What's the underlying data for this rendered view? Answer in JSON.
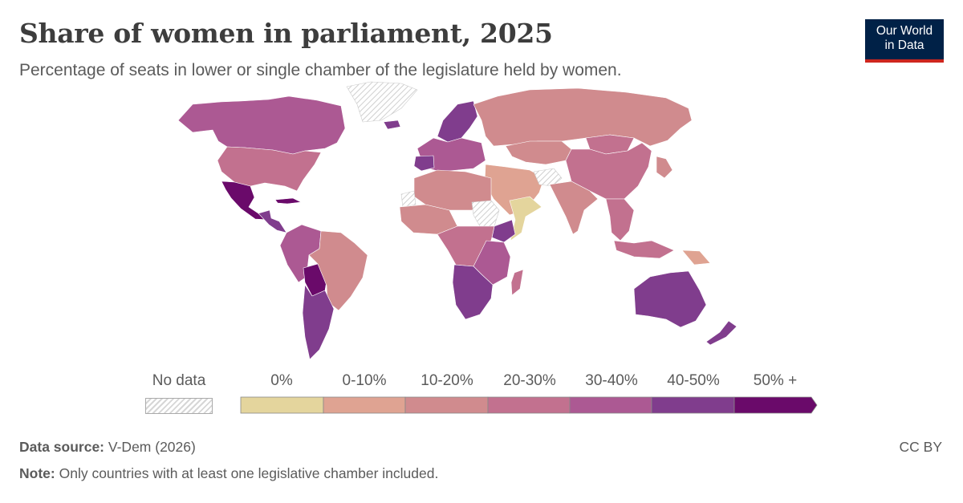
{
  "header": {
    "title": "Share of women in parliament, 2025",
    "subtitle": "Percentage of seats in lower or single chamber of the legislature held by women."
  },
  "logo": {
    "line1": "Our World",
    "line2": "in Data",
    "bg_color": "#002147",
    "accent_color": "#ce261e"
  },
  "legend": {
    "no_data_label": "No data",
    "bins": [
      {
        "label": "0%",
        "color": "#e4d59d"
      },
      {
        "label": "0-10%",
        "color": "#dfa392"
      },
      {
        "label": "10-20%",
        "color": "#d08b8e"
      },
      {
        "label": "20-30%",
        "color": "#c2718f"
      },
      {
        "label": "30-40%",
        "color": "#ac5993"
      },
      {
        "label": "40-50%",
        "color": "#803d8d"
      },
      {
        "label": "50% +",
        "color": "#6a0a6a"
      }
    ]
  },
  "footer": {
    "source_label": "Data source:",
    "source_value": "V-Dem (2026)",
    "note_label": "Note:",
    "note_value": "Only countries with at least one legislative chamber included.",
    "license": "CC BY"
  },
  "map_regions": [
    {
      "name": "canada",
      "bin": 4
    },
    {
      "name": "united-states",
      "bin": 3
    },
    {
      "name": "mexico",
      "bin": 6
    },
    {
      "name": "central-america",
      "bin": 5
    },
    {
      "name": "cuba",
      "bin": 6
    },
    {
      "name": "andean-south-america",
      "bin": 4
    },
    {
      "name": "bolivia",
      "bin": 6
    },
    {
      "name": "brazil",
      "bin": 2
    },
    {
      "name": "argentina-chile",
      "bin": 5
    },
    {
      "name": "greenland",
      "bin": -1
    },
    {
      "name": "iceland",
      "bin": 5
    },
    {
      "name": "scandinavia",
      "bin": 5
    },
    {
      "name": "western-europe",
      "bin": 4
    },
    {
      "name": "spain",
      "bin": 5
    },
    {
      "name": "russia",
      "bin": 2
    },
    {
      "name": "central-asia",
      "bin": 2
    },
    {
      "name": "china",
      "bin": 3
    },
    {
      "name": "mongolia",
      "bin": 3
    },
    {
      "name": "middle-east",
      "bin": 1
    },
    {
      "name": "afghanistan",
      "bin": -1
    },
    {
      "name": "india",
      "bin": 2
    },
    {
      "name": "southeast-asia",
      "bin": 3
    },
    {
      "name": "indonesia",
      "bin": 3
    },
    {
      "name": "north-africa",
      "bin": 2
    },
    {
      "name": "western-sahara",
      "bin": -1
    },
    {
      "name": "west-africa",
      "bin": 2
    },
    {
      "name": "sudan",
      "bin": -1
    },
    {
      "name": "horn-yemen",
      "bin": 0
    },
    {
      "name": "ethiopia",
      "bin": 5
    },
    {
      "name": "central-africa",
      "bin": 3
    },
    {
      "name": "east-africa",
      "bin": 4
    },
    {
      "name": "southern-africa",
      "bin": 5
    },
    {
      "name": "madagascar",
      "bin": 3
    },
    {
      "name": "australia",
      "bin": 5
    },
    {
      "name": "new-zealand",
      "bin": 5
    },
    {
      "name": "papua-new-guinea",
      "bin": 1
    },
    {
      "name": "japan",
      "bin": 2
    }
  ]
}
